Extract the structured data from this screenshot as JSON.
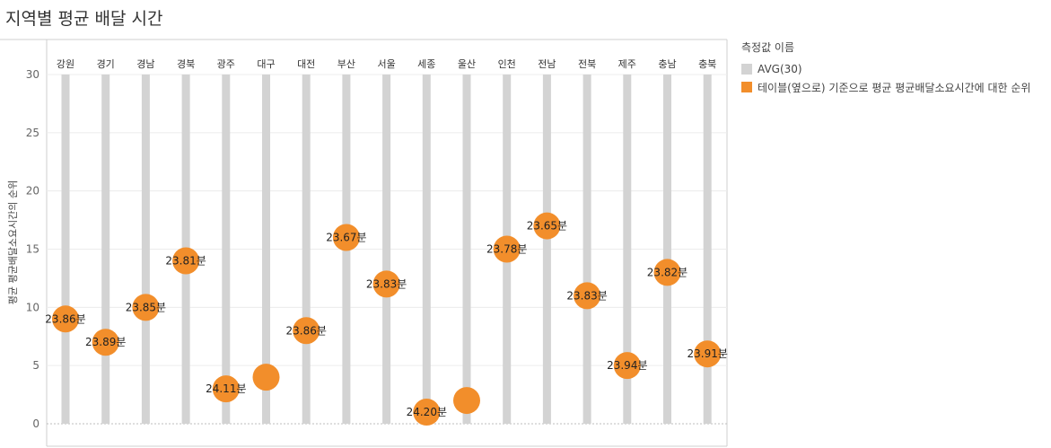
{
  "page": {
    "title": "지역별 평균 배달 시간"
  },
  "legend": {
    "title": "측정값 이름",
    "items": [
      {
        "label": "AVG(30)",
        "color": "#d3d3d3"
      },
      {
        "label": "테이블(옆으로) 기준으로 평균 평균배달소요시간에 대한 순위",
        "color": "#f28e2b"
      }
    ]
  },
  "chart_data": {
    "type": "scatter",
    "title": "지역별 평균 배달 시간",
    "xlabel": "",
    "ylabel": "평균 평균배달소요시간의 순위",
    "ylim": [
      0,
      30
    ],
    "yticks": [
      0,
      5,
      10,
      15,
      20,
      25,
      30
    ],
    "grid": true,
    "legend_position": "right",
    "categories": [
      "강원",
      "경기",
      "경남",
      "경북",
      "광주",
      "대구",
      "대전",
      "부산",
      "서울",
      "세종",
      "울산",
      "인천",
      "전남",
      "전북",
      "제주",
      "충남",
      "충북"
    ],
    "series": [
      {
        "name": "AVG(30)",
        "color": "#d3d3d3",
        "values": [
          30,
          30,
          30,
          30,
          30,
          30,
          30,
          30,
          30,
          30,
          30,
          30,
          30,
          30,
          30,
          30,
          30
        ]
      },
      {
        "name": "테이블(옆으로) 기준으로 평균 평균배달소요시간에 대한 순위",
        "color": "#f28e2b",
        "values": [
          9,
          7,
          10,
          14,
          3,
          4,
          8,
          16,
          12,
          1,
          2,
          15,
          17,
          11,
          5,
          13,
          6
        ]
      }
    ],
    "labels": [
      "23.86분",
      "23.89분",
      "23.85분",
      "23.81분",
      "24.11분",
      "",
      "23.86분",
      "23.67분",
      "23.83분",
      "24.20분",
      "",
      "23.78분",
      "23.65분",
      "23.83분",
      "23.94분",
      "23.82분",
      "23.91분"
    ]
  }
}
